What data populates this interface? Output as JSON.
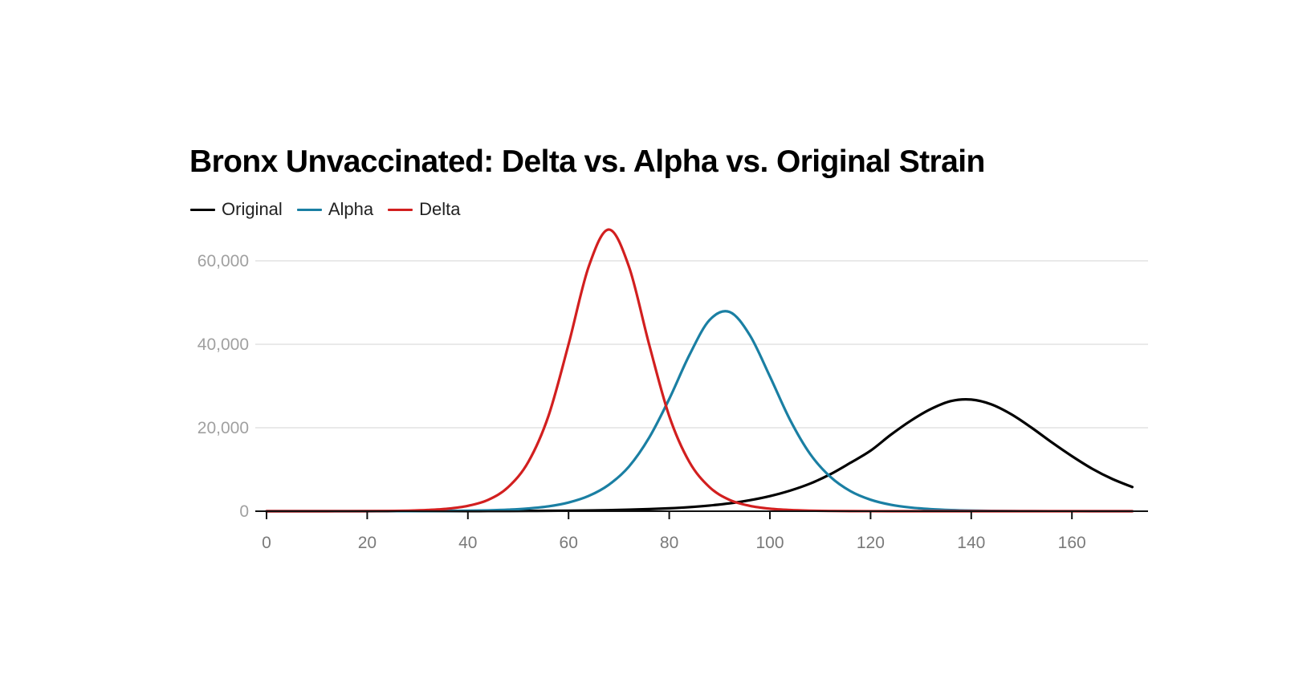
{
  "chart_data": {
    "type": "line",
    "title": "Bronx Unvaccinated: Delta vs. Alpha vs. Original Strain",
    "xlabel": "",
    "ylabel": "",
    "xlim": [
      0,
      172
    ],
    "ylim": [
      0,
      67500
    ],
    "x_ticks": [
      "0",
      "20",
      "40",
      "60",
      "80",
      "100",
      "120",
      "140",
      "160"
    ],
    "y_ticks": [
      "0",
      "20,000",
      "40,000",
      "60,000"
    ],
    "grid": "horizontal",
    "legend": "top-left",
    "x": [
      0,
      4,
      8,
      12,
      16,
      20,
      24,
      28,
      32,
      36,
      40,
      44,
      48,
      52,
      56,
      60,
      64,
      68,
      72,
      76,
      80,
      84,
      88,
      92,
      96,
      100,
      104,
      108,
      112,
      116,
      120,
      124,
      128,
      132,
      136,
      140,
      144,
      148,
      152,
      156,
      160,
      164,
      168,
      172
    ],
    "series": [
      {
        "name": "Original",
        "color": "#000000",
        "values": [
          1,
          1,
          2,
          2,
          3,
          4,
          6,
          9,
          12,
          17,
          24,
          34,
          47,
          66,
          92,
          130,
          182,
          255,
          358,
          500,
          700,
          976,
          1360,
          1890,
          2630,
          3620,
          4930,
          6620,
          8850,
          11600,
          14500,
          18300,
          21700,
          24500,
          26400,
          26750,
          25600,
          23200,
          20000,
          16500,
          13200,
          10200,
          7740,
          5800
        ]
      },
      {
        "name": "Alpha",
        "color": "#1a7fa3",
        "values": [
          0,
          1,
          1,
          2,
          4,
          6,
          11,
          20,
          36,
          64,
          115,
          206,
          368,
          660,
          1160,
          2080,
          3660,
          6340,
          10700,
          17600,
          26900,
          37400,
          45800,
          47750,
          42200,
          32300,
          21900,
          13700,
          8250,
          4800,
          2750,
          1550,
          880,
          495,
          278,
          155,
          87,
          48,
          26,
          15,
          8,
          5,
          3,
          1
        ]
      },
      {
        "name": "Delta",
        "color": "#d21f1f",
        "values": [
          0,
          1,
          3,
          6,
          14,
          29,
          62,
          132,
          283,
          605,
          1290,
          2710,
          5770,
          11800,
          22800,
          40000,
          58600,
          67500,
          58600,
          40000,
          22800,
          11800,
          5770,
          2710,
          1290,
          605,
          283,
          132,
          62,
          29,
          14,
          6,
          3,
          1,
          0,
          0,
          0,
          0,
          0,
          0,
          0,
          0,
          0,
          0
        ]
      }
    ]
  }
}
